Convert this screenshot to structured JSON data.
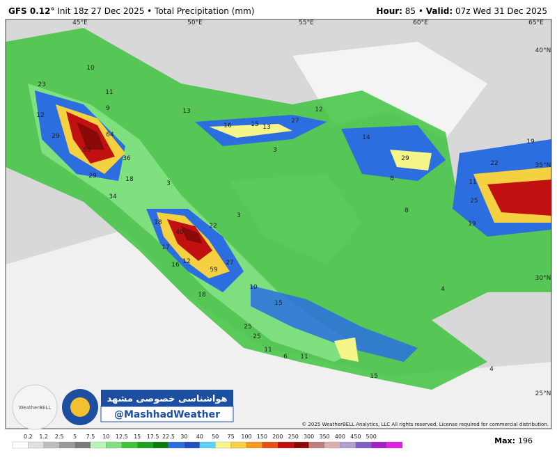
{
  "header": {
    "model": "GFS 0.12°",
    "info": "Init 18z 27 Dec 2025 • Total Precipitation (mm)",
    "hour_label": "Hour:",
    "hour": "85",
    "separator": "•",
    "valid_label": "Valid:",
    "valid": "07z Wed 31 Dec 2025"
  },
  "map": {
    "grid_labels": [
      "45°E",
      "50°E",
      "55°E",
      "60°E",
      "65°E",
      "40°N",
      "35°N",
      "30°N",
      "25°N"
    ],
    "value_labels": [
      "23",
      "12",
      "29",
      "51",
      "64",
      "36",
      "29",
      "18",
      "34",
      "9",
      "13",
      "16",
      "15",
      "13",
      "27",
      "12",
      "10",
      "11",
      "3",
      "3",
      "14",
      "29",
      "8",
      "8",
      "19",
      "22",
      "11",
      "25",
      "19",
      "18",
      "40",
      "22",
      "17",
      "12",
      "16",
      "27",
      "59",
      "10",
      "15",
      "18",
      "25",
      "25",
      "11",
      "6",
      "11",
      "15",
      "4",
      "4",
      "3"
    ],
    "copyright": "© 2025 WeatherBELL Analytics, LLC All rights reserved. License required for commercial distribution."
  },
  "logo": {
    "brand": "WeatherBELL",
    "title": "هواشناسی خصوصی مشهد",
    "handle": "@MashhadWeather"
  },
  "colorbar": {
    "labels": [
      "0.2",
      "1.2",
      "2.5",
      "5",
      "7.5",
      "10",
      "12.5",
      "15",
      "17.5",
      "22.5",
      "30",
      "40",
      "50",
      "75",
      "100",
      "150",
      "200",
      "250",
      "300",
      "350",
      "400",
      "450",
      "500"
    ],
    "colors": [
      "#ffffff",
      "#e0e0e0",
      "#bdbdbd",
      "#9a9a9a",
      "#7a7a7a",
      "#b5f5b5",
      "#7ee07e",
      "#3fc43f",
      "#1fa01f",
      "#0c7a0c",
      "#2c6ee0",
      "#1e4fc0",
      "#5fd0f0",
      "#f5f58a",
      "#f5d040",
      "#f59a20",
      "#e85010",
      "#c01010",
      "#8a0a0a",
      "#c08080",
      "#d8b0b0",
      "#b0a0d0",
      "#8060c0",
      "#a020c0",
      "#e020e0"
    ],
    "max_label": "Max:",
    "max": "196"
  }
}
